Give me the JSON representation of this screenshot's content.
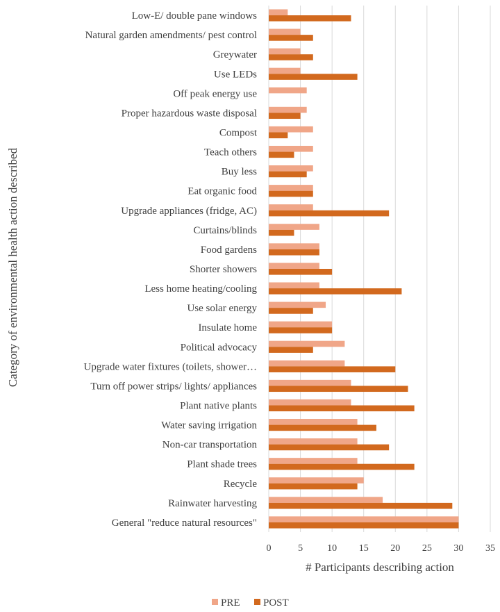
{
  "chart_data": {
    "type": "bar",
    "orientation": "horizontal",
    "title": "",
    "xlabel": "# Participants describing action",
    "ylabel": "Category of environmental health action described",
    "xlim": [
      0,
      35
    ],
    "xticks": [
      0,
      5,
      10,
      15,
      20,
      25,
      30,
      35
    ],
    "grid": "vertical",
    "legend_position": "bottom",
    "categories": [
      "Low-E/ double pane windows",
      "Natural garden amendments/ pest control",
      "Greywater",
      "Use LEDs",
      "Off peak energy use",
      "Proper hazardous waste disposal",
      "Compost",
      "Teach others",
      "Buy less",
      "Eat organic food",
      "Upgrade appliances (fridge, AC)",
      "Curtains/blinds",
      "Food gardens",
      "Shorter showers",
      "Less home heating/cooling",
      "Use solar energy",
      "Insulate home",
      "Political advocacy",
      "Upgrade water fixtures (toilets, shower…",
      "Turn off power strips/ lights/ appliances",
      "Plant native plants",
      "Water saving irrigation",
      "Non-car transportation",
      "Plant shade trees",
      "Recycle",
      "Rainwater harvesting",
      "General \"reduce natural resources\""
    ],
    "series": [
      {
        "name": "PRE",
        "color": "#f0a688",
        "values": [
          3,
          5,
          5,
          5,
          6,
          6,
          7,
          7,
          7,
          7,
          7,
          8,
          8,
          8,
          8,
          9,
          10,
          12,
          12,
          13,
          13,
          14,
          14,
          14,
          15,
          18,
          30
        ]
      },
      {
        "name": "POST",
        "color": "#d2691e",
        "values": [
          13,
          7,
          7,
          14,
          0,
          5,
          3,
          4,
          6,
          7,
          19,
          4,
          8,
          10,
          21,
          7,
          10,
          7,
          20,
          22,
          23,
          17,
          19,
          23,
          14,
          29,
          30
        ]
      }
    ]
  }
}
